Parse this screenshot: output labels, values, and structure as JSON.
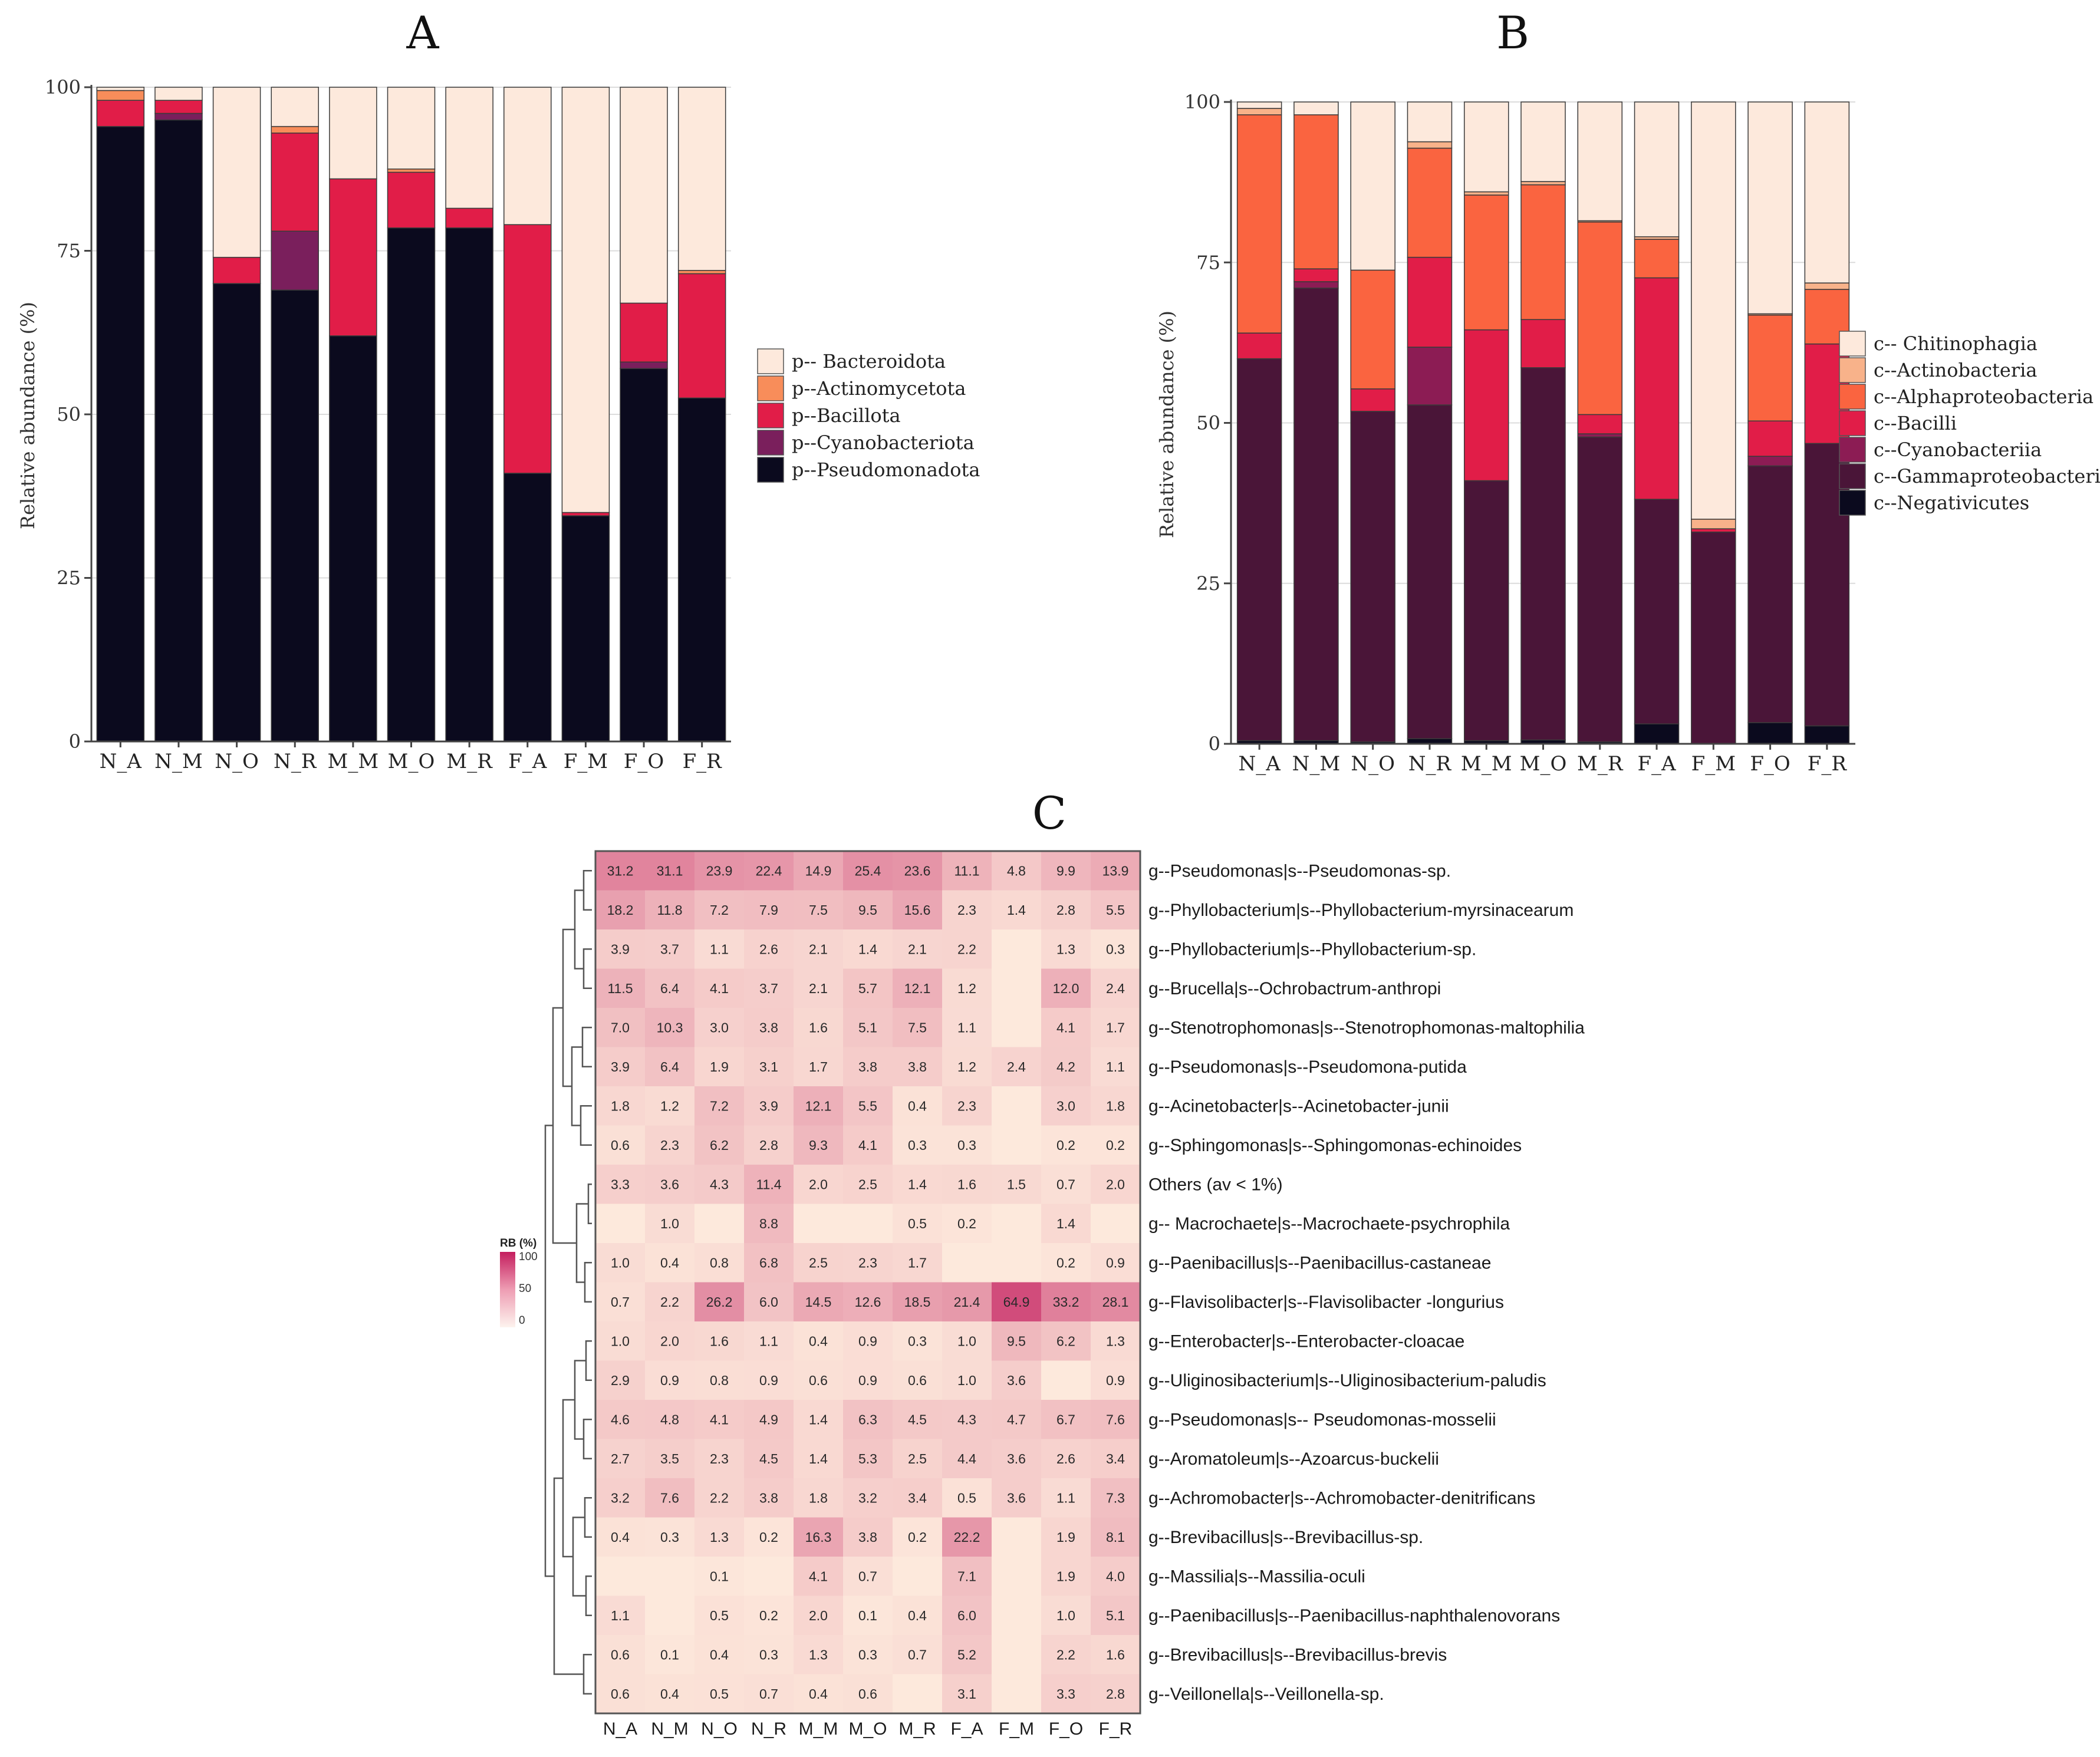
{
  "colors": {
    "phylum": {
      "Bacteroidota": "#fde9dc",
      "Actinomycetota": "#f88d5a",
      "Bacillota": "#e11d48",
      "Cyanobacteriota": "#7a1f5c",
      "Pseudomonadota": "#0b0a1e"
    },
    "class": {
      "Chitinophagia": "#fde9dc",
      "Actinobacteria": "#f8b28a",
      "Alphaproteobacteria": "#fa6440",
      "Bacilli": "#e11d48",
      "Cyanobacteriia": "#8c1c54",
      "Gammaproteobacteria": "#4a1538",
      "Negativicutes": "#0b0a1e"
    },
    "heat_low": "#fde9dc",
    "heat_high": "#c41e5e"
  },
  "chart_data": [
    {
      "panel": "A",
      "type": "bar",
      "stacked": true,
      "title": "A",
      "ylabel": "Relative abundance (%)",
      "xlabel": "",
      "ylim": [
        0,
        100
      ],
      "yticks": [
        0,
        25,
        50,
        75,
        100
      ],
      "grid": true,
      "legend_position": "right",
      "categories": [
        "N_A",
        "N_M",
        "N_O",
        "N_R",
        "M_M",
        "M_O",
        "M_R",
        "F_A",
        "F_M",
        "F_O",
        "F_R"
      ],
      "series": [
        {
          "name": "Pseudomonadota",
          "label": "p--Pseudomonadota",
          "values": [
            94,
            95,
            70,
            69,
            62,
            78.5,
            78.5,
            41,
            34.5,
            57,
            52.5
          ]
        },
        {
          "name": "Cyanobacteriota",
          "label": "p--Cyanobacteriota",
          "values": [
            0,
            1,
            0,
            9,
            0,
            0,
            0,
            0,
            0,
            1,
            0
          ]
        },
        {
          "name": "Bacillota",
          "label": "p--Bacillota",
          "values": [
            4,
            2,
            4,
            15,
            24,
            8.5,
            3,
            38,
            0.5,
            9,
            19
          ]
        },
        {
          "name": "Actinomycetota",
          "label": "p--Actinomycetota",
          "values": [
            1.5,
            0,
            0,
            1,
            0,
            0.5,
            0,
            0,
            0,
            0,
            0.5
          ]
        },
        {
          "name": "Bacteroidota",
          "label": "p-- Bacteroidota",
          "values": [
            0.5,
            2,
            26,
            6,
            14,
            12.5,
            18.5,
            21,
            65,
            33,
            28
          ]
        }
      ]
    },
    {
      "panel": "B",
      "type": "bar",
      "stacked": true,
      "title": "B",
      "ylabel": "Relative abundance (%)",
      "xlabel": "",
      "ylim": [
        0,
        100
      ],
      "yticks": [
        0,
        25,
        50,
        75,
        100
      ],
      "grid": true,
      "legend_position": "right",
      "categories": [
        "N_A",
        "N_M",
        "N_O",
        "N_R",
        "M_M",
        "M_O",
        "M_R",
        "F_A",
        "F_M",
        "F_O",
        "F_R"
      ],
      "series": [
        {
          "name": "Negativicutes",
          "label": "c--Negativicutes",
          "values": [
            0.5,
            0.5,
            0.3,
            0.8,
            0.5,
            0.6,
            0.3,
            3.1,
            0,
            3.3,
            2.8
          ]
        },
        {
          "name": "Gammaproteobacteria",
          "label": "c--Gammaproteobacteria",
          "values": [
            59.5,
            70.5,
            51.5,
            52,
            40.5,
            58,
            47.5,
            35,
            33,
            40,
            44
          ]
        },
        {
          "name": "Cyanobacteriia",
          "label": "c--Cyanobacteriia",
          "values": [
            0,
            1,
            0,
            9,
            0,
            0,
            0.5,
            0,
            0,
            1.5,
            0
          ]
        },
        {
          "name": "Bacilli",
          "label": "c--Bacilli",
          "values": [
            4,
            2,
            3.5,
            14,
            23.5,
            7.5,
            3,
            34.5,
            0.5,
            5.5,
            15.5
          ]
        },
        {
          "name": "Alphaproteobacteria",
          "label": "c--Alphaproteobacteria",
          "values": [
            34,
            24,
            18.5,
            17,
            21,
            21,
            30,
            6,
            0,
            16.5,
            8.5
          ]
        },
        {
          "name": "Actinobacteria",
          "label": "c--Actinobacteria",
          "values": [
            1,
            0,
            0,
            1,
            0.5,
            0.5,
            0.2,
            0.4,
            1.5,
            0.2,
            1
          ]
        },
        {
          "name": "Chitinophagia",
          "label": "c-- Chitinophagia",
          "values": [
            1,
            2,
            26.2,
            6.2,
            14,
            12.4,
            18.5,
            21,
            65,
            33,
            28.2
          ]
        }
      ]
    },
    {
      "panel": "C",
      "type": "heatmap",
      "title": "C",
      "colorbar_title": "RB (%)",
      "colorbar_range": [
        0,
        100
      ],
      "colorbar_ticks": [
        "100",
        "50",
        "0"
      ],
      "columns": [
        "N_A",
        "N_M",
        "N_O",
        "N_R",
        "M_M",
        "M_O",
        "M_R",
        "F_A",
        "F_M",
        "F_O",
        "F_R"
      ],
      "rows": [
        {
          "label": "g--Pseudomonas|s--Pseudomonas-sp.",
          "values": [
            "31.2",
            "31.1",
            "23.9",
            "22.4",
            "14.9",
            "25.4",
            "23.6",
            "11.1",
            "4.8",
            "9.9",
            "13.9"
          ]
        },
        {
          "label": "g--Phyllobacterium|s--Phyllobacterium-myrsinacearum",
          "values": [
            "18.2",
            "11.8",
            "7.2",
            "7.9",
            "7.5",
            "9.5",
            "15.6",
            "2.3",
            "1.4",
            "2.8",
            "5.5"
          ]
        },
        {
          "label": "g--Phyllobacterium|s--Phyllobacterium-sp.",
          "values": [
            "3.9",
            "3.7",
            "1.1",
            "2.6",
            "2.1",
            "1.4",
            "2.1",
            "2.2",
            "",
            "1.3",
            "0.3"
          ]
        },
        {
          "label": "g--Brucella|s--Ochrobactrum-anthropi",
          "values": [
            "11.5",
            "6.4",
            "4.1",
            "3.7",
            "2.1",
            "5.7",
            "12.1",
            "1.2",
            "",
            "12.0",
            "2.4"
          ]
        },
        {
          "label": "g--Stenotrophomonas|s--Stenotrophomonas-maltophilia",
          "values": [
            "7.0",
            "10.3",
            "3.0",
            "3.8",
            "1.6",
            "5.1",
            "7.5",
            "1.1",
            "",
            "4.1",
            "1.7"
          ]
        },
        {
          "label": "g--Pseudomonas|s--Pseudomona-putida",
          "values": [
            "3.9",
            "6.4",
            "1.9",
            "3.1",
            "1.7",
            "3.8",
            "3.8",
            "1.2",
            "2.4",
            "4.2",
            "1.1"
          ]
        },
        {
          "label": "g--Acinetobacter|s--Acinetobacter-junii",
          "values": [
            "1.8",
            "1.2",
            "7.2",
            "3.9",
            "12.1",
            "5.5",
            "0.4",
            "2.3",
            "",
            "3.0",
            "1.8"
          ]
        },
        {
          "label": "g--Sphingomonas|s--Sphingomonas-echinoides",
          "values": [
            "0.6",
            "2.3",
            "6.2",
            "2.8",
            "9.3",
            "4.1",
            "0.3",
            "0.3",
            "",
            "0.2",
            "0.2"
          ]
        },
        {
          "label": "Others (av < 1%)",
          "values": [
            "3.3",
            "3.6",
            "4.3",
            "11.4",
            "2.0",
            "2.5",
            "1.4",
            "1.6",
            "1.5",
            "0.7",
            "2.0"
          ]
        },
        {
          "label": "g-- Macrochaete|s--Macrochaete-psychrophila",
          "values": [
            "",
            "1.0",
            "",
            "8.8",
            "",
            "",
            "0.5",
            "0.2",
            "",
            "1.4",
            ""
          ]
        },
        {
          "label": "g--Paenibacillus|s--Paenibacillus-castaneae",
          "values": [
            "1.0",
            "0.4",
            "0.8",
            "6.8",
            "2.5",
            "2.3",
            "1.7",
            "",
            "",
            "0.2",
            "0.9"
          ]
        },
        {
          "label": "g--Flavisolibacter|s--Flavisolibacter -longurius",
          "values": [
            "0.7",
            "2.2",
            "26.2",
            "6.0",
            "14.5",
            "12.6",
            "18.5",
            "21.4",
            "64.9",
            "33.2",
            "28.1"
          ]
        },
        {
          "label": "g--Enterobacter|s--Enterobacter-cloacae",
          "values": [
            "1.0",
            "2.0",
            "1.6",
            "1.1",
            "0.4",
            "0.9",
            "0.3",
            "1.0",
            "9.5",
            "6.2",
            "1.3"
          ]
        },
        {
          "label": "g--Uliginosibacterium|s--Uliginosibacterium-paludis",
          "values": [
            "2.9",
            "0.9",
            "0.8",
            "0.9",
            "0.6",
            "0.9",
            "0.6",
            "1.0",
            "3.6",
            "",
            "0.9"
          ]
        },
        {
          "label": "g--Pseudomonas|s-- Pseudomonas-mosselii",
          "values": [
            "4.6",
            "4.8",
            "4.1",
            "4.9",
            "1.4",
            "6.3",
            "4.5",
            "4.3",
            "4.7",
            "6.7",
            "7.6"
          ]
        },
        {
          "label": "g--Aromatoleum|s--Azoarcus-buckelii",
          "values": [
            "2.7",
            "3.5",
            "2.3",
            "4.5",
            "1.4",
            "5.3",
            "2.5",
            "4.4",
            "3.6",
            "2.6",
            "3.4"
          ]
        },
        {
          "label": "g--Achromobacter|s--Achromobacter-denitrificans",
          "values": [
            "3.2",
            "7.6",
            "2.2",
            "3.8",
            "1.8",
            "3.2",
            "3.4",
            "0.5",
            "3.6",
            "1.1",
            "7.3"
          ]
        },
        {
          "label": "g--Brevibacillus|s--Brevibacillus-sp.",
          "values": [
            "0.4",
            "0.3",
            "1.3",
            "0.2",
            "16.3",
            "3.8",
            "0.2",
            "22.2",
            "",
            "1.9",
            "8.1"
          ]
        },
        {
          "label": "g--Massilia|s--Massilia-oculi",
          "values": [
            "",
            "",
            "0.1",
            "",
            "4.1",
            "0.7",
            "",
            "7.1",
            "",
            "1.9",
            "4.0"
          ]
        },
        {
          "label": "g--Paenibacillus|s--Paenibacillus-naphthalenovorans",
          "values": [
            "1.1",
            "",
            "0.5",
            "0.2",
            "2.0",
            "0.1",
            "0.4",
            "6.0",
            "",
            "1.0",
            "5.1"
          ]
        },
        {
          "label": "g--Brevibacillus|s--Brevibacillus-brevis",
          "values": [
            "0.6",
            "0.1",
            "0.4",
            "0.3",
            "1.3",
            "0.3",
            "0.7",
            "5.2",
            "",
            "2.2",
            "1.6"
          ]
        },
        {
          "label": "g--Veillonella|s--Veillonella-sp.",
          "values": [
            "0.6",
            "0.4",
            "0.5",
            "0.7",
            "0.4",
            "0.6",
            "",
            "3.1",
            "",
            "3.3",
            "2.8"
          ]
        }
      ]
    }
  ]
}
